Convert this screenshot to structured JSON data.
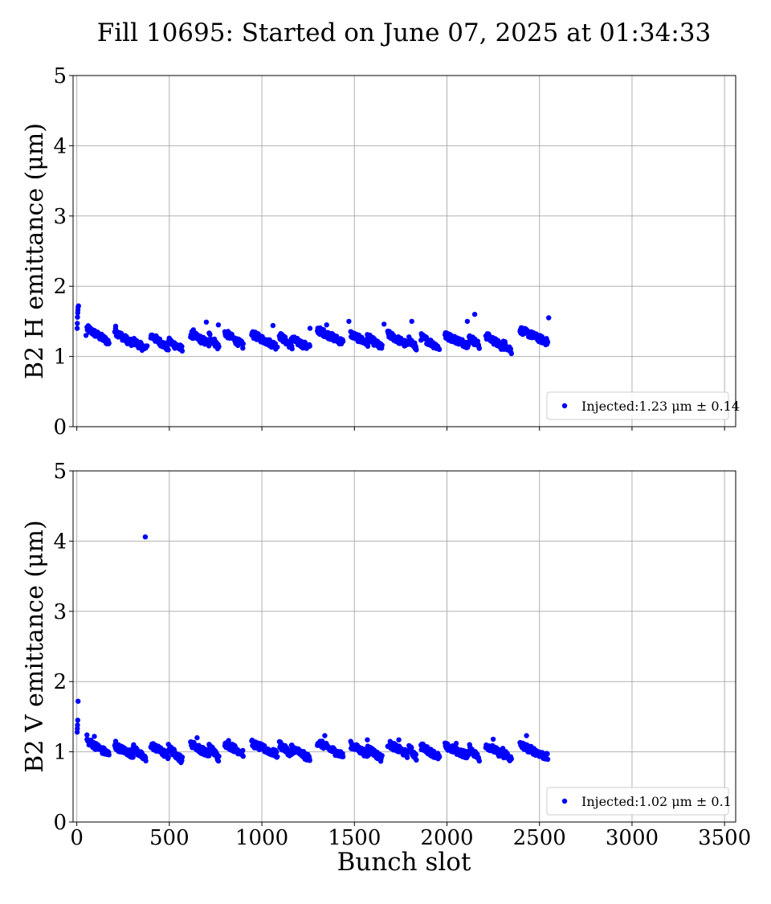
{
  "chart_data": {
    "title": "Fill 10695: Started on June 07, 2025 at 01:34:33",
    "xlabel": "Bunch slot",
    "xlim": [
      -20,
      3560
    ],
    "xticks": [
      0,
      500,
      1000,
      1500,
      2000,
      2500,
      3000,
      3500
    ],
    "marker_color": "#0000ff",
    "grid": true,
    "subplots": [
      {
        "type": "scatter",
        "ylabel": "B2 H emittance (μm)",
        "ylim": [
          0,
          5
        ],
        "yticks": [
          0,
          1,
          2,
          3,
          4,
          5
        ],
        "show_xtick_labels": false,
        "legend": {
          "label": "Injected:1.23 μm ± 0.14",
          "placement": "lower-right"
        },
        "points": [
          [
            2,
            1.4
          ],
          [
            3,
            1.47
          ],
          [
            4,
            1.56
          ],
          [
            5,
            1.62
          ],
          [
            6,
            1.66
          ],
          [
            7,
            1.7
          ],
          [
            9,
            1.72
          ],
          [
            50,
            1.3
          ],
          [
            380,
            1.15
          ],
          [
            2150,
            1.6
          ],
          [
            2110,
            1.5
          ],
          [
            1470,
            1.5
          ],
          [
            1060,
            1.44
          ],
          [
            700,
            1.49
          ],
          [
            765,
            1.45
          ],
          [
            1810,
            1.5
          ],
          [
            1660,
            1.46
          ],
          [
            1350,
            1.45
          ],
          [
            2550,
            1.55
          ],
          [
            210,
            1.43
          ],
          [
            630,
            1.38
          ],
          [
            1260,
            1.4
          ]
        ],
        "trains": [
          [
            55,
            175,
            1.4,
            1.2
          ],
          [
            205,
            305,
            1.36,
            1.17
          ],
          [
            305,
            375,
            1.22,
            1.1
          ],
          [
            400,
            495,
            1.3,
            1.12
          ],
          [
            495,
            570,
            1.22,
            1.1
          ],
          [
            615,
            715,
            1.32,
            1.18
          ],
          [
            715,
            770,
            1.3,
            1.12
          ],
          [
            800,
            900,
            1.34,
            1.15
          ],
          [
            945,
            1085,
            1.32,
            1.14
          ],
          [
            1095,
            1165,
            1.3,
            1.14
          ],
          [
            1160,
            1260,
            1.25,
            1.12
          ],
          [
            1300,
            1440,
            1.38,
            1.2
          ],
          [
            1480,
            1575,
            1.32,
            1.18
          ],
          [
            1570,
            1650,
            1.28,
            1.12
          ],
          [
            1680,
            1790,
            1.32,
            1.16
          ],
          [
            1795,
            1835,
            1.24,
            1.12
          ],
          [
            1860,
            1960,
            1.28,
            1.12
          ],
          [
            1990,
            2120,
            1.3,
            1.16
          ],
          [
            2120,
            2175,
            1.28,
            1.15
          ],
          [
            2210,
            2310,
            1.3,
            1.12
          ],
          [
            2300,
            2350,
            1.2,
            1.08
          ],
          [
            2395,
            2545,
            1.38,
            1.2
          ]
        ]
      },
      {
        "type": "scatter",
        "ylabel": "B2 V emittance (μm)",
        "ylim": [
          0,
          5
        ],
        "yticks": [
          0,
          1,
          2,
          3,
          4,
          5
        ],
        "show_xtick_labels": true,
        "legend": {
          "label": "Injected:1.02 μm ± 0.1",
          "placement": "lower-right"
        },
        "points": [
          [
            2,
            1.28
          ],
          [
            3,
            1.33
          ],
          [
            4,
            1.38
          ],
          [
            5,
            1.45
          ],
          [
            7,
            1.72
          ],
          [
            370,
            4.06
          ],
          [
            55,
            1.24
          ],
          [
            650,
            1.2
          ],
          [
            1340,
            1.23
          ],
          [
            2430,
            1.23
          ],
          [
            2250,
            1.18
          ],
          [
            1740,
            1.17
          ],
          [
            1570,
            1.17
          ],
          [
            1100,
            1.14
          ],
          [
            820,
            1.16
          ],
          [
            95,
            1.22
          ],
          [
            210,
            1.15
          ],
          [
            2050,
            1.12
          ]
        ],
        "trains": [
          [
            55,
            175,
            1.16,
            0.96
          ],
          [
            205,
            305,
            1.08,
            0.96
          ],
          [
            305,
            375,
            1.06,
            0.88
          ],
          [
            400,
            495,
            1.1,
            0.94
          ],
          [
            495,
            570,
            1.06,
            0.88
          ],
          [
            615,
            715,
            1.12,
            0.96
          ],
          [
            715,
            770,
            1.08,
            0.9
          ],
          [
            800,
            900,
            1.12,
            0.98
          ],
          [
            945,
            1085,
            1.12,
            0.96
          ],
          [
            1095,
            1165,
            1.1,
            0.96
          ],
          [
            1160,
            1260,
            1.06,
            0.9
          ],
          [
            1300,
            1440,
            1.14,
            0.94
          ],
          [
            1480,
            1575,
            1.1,
            0.96
          ],
          [
            1570,
            1650,
            1.06,
            0.9
          ],
          [
            1680,
            1790,
            1.12,
            0.96
          ],
          [
            1795,
            1835,
            1.06,
            0.92
          ],
          [
            1860,
            1960,
            1.08,
            0.92
          ],
          [
            1990,
            2120,
            1.08,
            0.94
          ],
          [
            2120,
            2175,
            1.06,
            0.9
          ],
          [
            2210,
            2310,
            1.1,
            0.94
          ],
          [
            2300,
            2350,
            1.02,
            0.88
          ],
          [
            2395,
            2545,
            1.1,
            0.92
          ]
        ]
      }
    ]
  }
}
